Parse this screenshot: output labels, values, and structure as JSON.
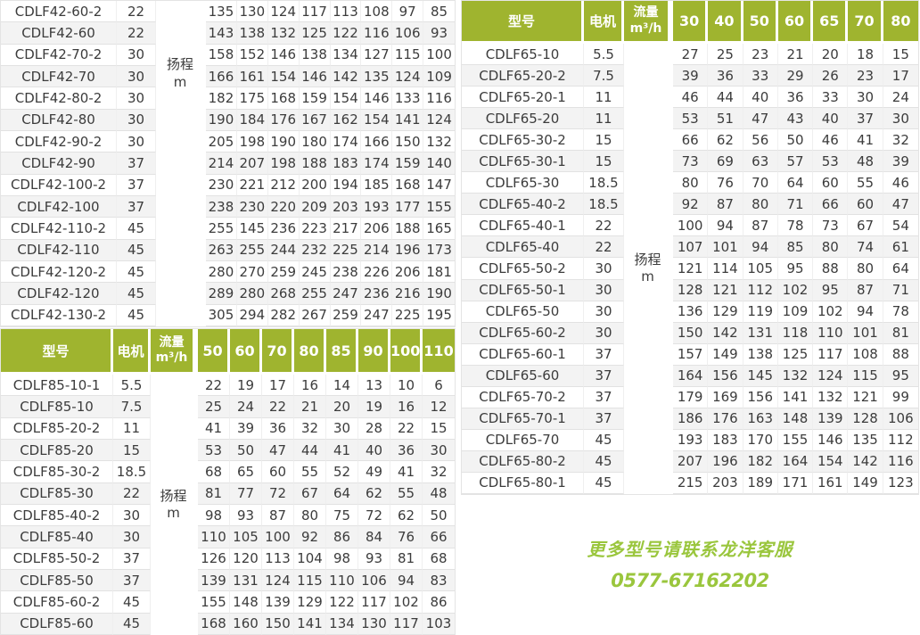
{
  "colors": {
    "header_green": "#9fb42f",
    "contact_green": "#9ac63d",
    "row_stripe": "#f3f3f3",
    "cell_border": "#e2e2e2",
    "text": "#3c3c3c"
  },
  "labels": {
    "model": "型号",
    "motor": "电机",
    "flow_line1": "流量",
    "flow_line2": "m³/h",
    "lift_line1": "扬程",
    "lift_line2": "m"
  },
  "tables": {
    "cdlf42": {
      "flow_headers": null,
      "rows": [
        {
          "model": "CDLF42-60-2",
          "motor": "22",
          "values": [
            135,
            130,
            124,
            117,
            113,
            108,
            97,
            85
          ]
        },
        {
          "model": "CDLF42-60",
          "motor": "22",
          "values": [
            143,
            138,
            132,
            125,
            122,
            116,
            106,
            93
          ]
        },
        {
          "model": "CDLF42-70-2",
          "motor": "30",
          "values": [
            158,
            152,
            146,
            138,
            134,
            127,
            115,
            100
          ]
        },
        {
          "model": "CDLF42-70",
          "motor": "30",
          "values": [
            166,
            161,
            154,
            146,
            142,
            135,
            124,
            109
          ]
        },
        {
          "model": "CDLF42-80-2",
          "motor": "30",
          "values": [
            182,
            175,
            168,
            159,
            154,
            146,
            133,
            116
          ]
        },
        {
          "model": "CDLF42-80",
          "motor": "30",
          "values": [
            190,
            184,
            176,
            167,
            162,
            154,
            141,
            124
          ]
        },
        {
          "model": "CDLF42-90-2",
          "motor": "30",
          "values": [
            205,
            198,
            190,
            180,
            174,
            166,
            150,
            132
          ]
        },
        {
          "model": "CDLF42-90",
          "motor": "37",
          "values": [
            214,
            207,
            198,
            188,
            183,
            174,
            159,
            140
          ]
        },
        {
          "model": "CDLF42-100-2",
          "motor": "37",
          "values": [
            230,
            221,
            212,
            200,
            194,
            185,
            168,
            147
          ]
        },
        {
          "model": "CDLF42-100",
          "motor": "37",
          "values": [
            238,
            230,
            220,
            209,
            203,
            193,
            177,
            155
          ]
        },
        {
          "model": "CDLF42-110-2",
          "motor": "45",
          "values": [
            255,
            145,
            236,
            223,
            217,
            206,
            188,
            165
          ]
        },
        {
          "model": "CDLF42-110",
          "motor": "45",
          "values": [
            263,
            255,
            244,
            232,
            225,
            214,
            196,
            173
          ]
        },
        {
          "model": "CDLF42-120-2",
          "motor": "45",
          "values": [
            280,
            270,
            259,
            245,
            238,
            226,
            206,
            181
          ]
        },
        {
          "model": "CDLF42-120",
          "motor": "45",
          "values": [
            289,
            280,
            268,
            255,
            247,
            236,
            216,
            190
          ]
        },
        {
          "model": "CDLF42-130-2",
          "motor": "45",
          "values": [
            305,
            294,
            282,
            267,
            259,
            247,
            225,
            195
          ]
        }
      ]
    },
    "cdlf85": {
      "flow_headers": [
        "50",
        "60",
        "70",
        "80",
        "85",
        "90",
        "100",
        "110"
      ],
      "rows": [
        {
          "model": "CDLF85-10-1",
          "motor": "5.5",
          "values": [
            22,
            19,
            17,
            16,
            14,
            13,
            10,
            6
          ]
        },
        {
          "model": "CDLF85-10",
          "motor": "7.5",
          "values": [
            25,
            24,
            22,
            21,
            20,
            19,
            16,
            12
          ]
        },
        {
          "model": "CDLF85-20-2",
          "motor": "11",
          "values": [
            41,
            39,
            36,
            32,
            30,
            28,
            22,
            15
          ]
        },
        {
          "model": "CDLF85-20",
          "motor": "15",
          "values": [
            53,
            50,
            47,
            44,
            41,
            40,
            36,
            30
          ]
        },
        {
          "model": "CDLF85-30-2",
          "motor": "18.5",
          "values": [
            68,
            65,
            60,
            55,
            52,
            49,
            41,
            32
          ]
        },
        {
          "model": "CDLF85-30",
          "motor": "22",
          "values": [
            81,
            77,
            72,
            67,
            64,
            62,
            55,
            48
          ]
        },
        {
          "model": "CDLF85-40-2",
          "motor": "30",
          "values": [
            98,
            93,
            87,
            80,
            75,
            72,
            62,
            50
          ]
        },
        {
          "model": "CDLF85-40",
          "motor": "30",
          "values": [
            110,
            105,
            100,
            92,
            86,
            84,
            76,
            66
          ]
        },
        {
          "model": "CDLF85-50-2",
          "motor": "37",
          "values": [
            126,
            120,
            113,
            104,
            98,
            93,
            81,
            68
          ]
        },
        {
          "model": "CDLF85-50",
          "motor": "37",
          "values": [
            139,
            131,
            124,
            115,
            110,
            106,
            94,
            83
          ]
        },
        {
          "model": "CDLF85-60-2",
          "motor": "45",
          "values": [
            155,
            148,
            139,
            129,
            122,
            117,
            102,
            86
          ]
        },
        {
          "model": "CDLF85-60",
          "motor": "45",
          "values": [
            168,
            160,
            150,
            141,
            134,
            130,
            117,
            103
          ]
        }
      ]
    },
    "cdlf65": {
      "flow_headers": [
        "30",
        "40",
        "50",
        "60",
        "65",
        "70",
        "80"
      ],
      "rows": [
        {
          "model": "CDLF65-10",
          "motor": "5.5",
          "values": [
            27,
            25,
            23,
            21,
            20,
            18,
            15
          ]
        },
        {
          "model": "CDLF65-20-2",
          "motor": "7.5",
          "values": [
            39,
            36,
            33,
            29,
            26,
            23,
            17
          ]
        },
        {
          "model": "CDLF65-20-1",
          "motor": "11",
          "values": [
            46,
            44,
            40,
            36,
            33,
            30,
            24
          ]
        },
        {
          "model": "CDLF65-20",
          "motor": "11",
          "values": [
            53,
            51,
            47,
            43,
            40,
            37,
            30
          ]
        },
        {
          "model": "CDLF65-30-2",
          "motor": "15",
          "values": [
            66,
            62,
            56,
            50,
            46,
            41,
            32
          ]
        },
        {
          "model": "CDLF65-30-1",
          "motor": "15",
          "values": [
            73,
            69,
            63,
            57,
            53,
            48,
            39
          ]
        },
        {
          "model": "CDLF65-30",
          "motor": "18.5",
          "values": [
            80,
            76,
            70,
            64,
            60,
            55,
            46
          ]
        },
        {
          "model": "CDLF65-40-2",
          "motor": "18.5",
          "values": [
            92,
            87,
            80,
            71,
            66,
            60,
            47
          ]
        },
        {
          "model": "CDLF65-40-1",
          "motor": "22",
          "values": [
            100,
            94,
            87,
            78,
            73,
            67,
            54
          ]
        },
        {
          "model": "CDLF65-40",
          "motor": "22",
          "values": [
            107,
            101,
            94,
            85,
            80,
            74,
            61
          ]
        },
        {
          "model": "CDLF65-50-2",
          "motor": "30",
          "values": [
            121,
            114,
            105,
            95,
            88,
            80,
            64
          ]
        },
        {
          "model": "CDLF65-50-1",
          "motor": "30",
          "values": [
            128,
            121,
            112,
            102,
            95,
            87,
            71
          ]
        },
        {
          "model": "CDLF65-50",
          "motor": "30",
          "values": [
            136,
            129,
            119,
            109,
            102,
            94,
            78
          ]
        },
        {
          "model": "CDLF65-60-2",
          "motor": "30",
          "values": [
            150,
            142,
            131,
            118,
            110,
            101,
            81
          ]
        },
        {
          "model": "CDLF65-60-1",
          "motor": "37",
          "values": [
            157,
            149,
            138,
            125,
            117,
            108,
            88
          ]
        },
        {
          "model": "CDLF65-60",
          "motor": "37",
          "values": [
            164,
            156,
            145,
            132,
            124,
            115,
            95
          ]
        },
        {
          "model": "CDLF65-70-2",
          "motor": "37",
          "values": [
            179,
            169,
            156,
            141,
            132,
            121,
            99
          ]
        },
        {
          "model": "CDLF65-70-1",
          "motor": "37",
          "values": [
            186,
            176,
            163,
            148,
            139,
            128,
            106
          ]
        },
        {
          "model": "CDLF65-70",
          "motor": "45",
          "values": [
            193,
            183,
            170,
            155,
            146,
            135,
            112
          ]
        },
        {
          "model": "CDLF65-80-2",
          "motor": "45",
          "values": [
            207,
            196,
            182,
            164,
            154,
            142,
            116
          ]
        },
        {
          "model": "CDLF65-80-1",
          "motor": "45",
          "values": [
            215,
            203,
            189,
            171,
            161,
            149,
            123
          ]
        }
      ]
    }
  },
  "contact": {
    "line1": "更多型号请联系龙洋客服",
    "phone": "0577-67162202"
  }
}
